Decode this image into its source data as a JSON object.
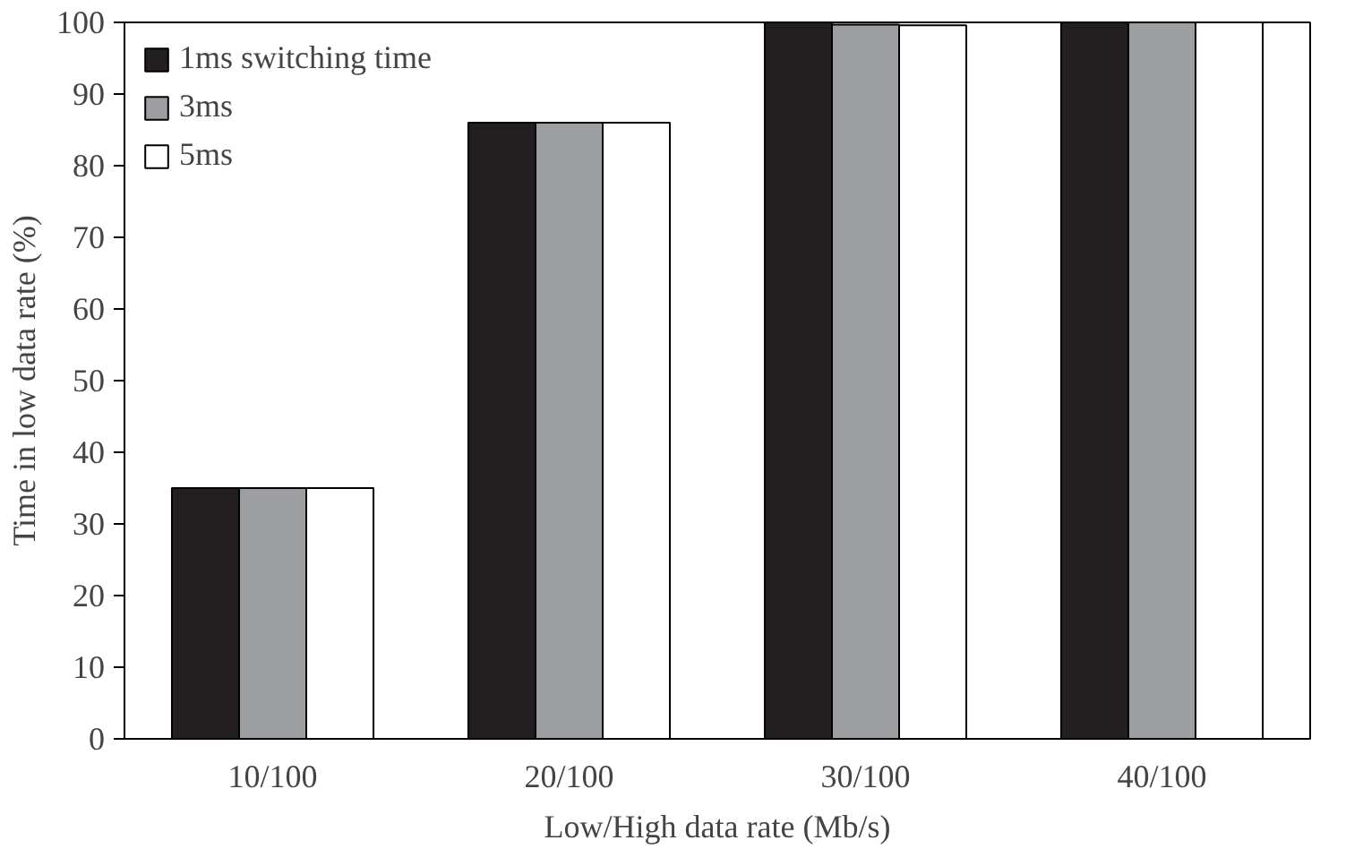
{
  "chart_data": {
    "type": "bar",
    "xlabel": "Low/High data rate (Mb/s)",
    "ylabel": "Time in low data rate (%)",
    "categories": [
      "10/100",
      "20/100",
      "30/100",
      "40/100"
    ],
    "series": [
      {
        "name": "1ms switching time",
        "color": "#231f20",
        "values": [
          35,
          86,
          100,
          100
        ]
      },
      {
        "name": "3ms",
        "color": "#9d9ea2",
        "values": [
          35,
          86,
          99.7,
          100
        ]
      },
      {
        "name": "5ms",
        "color": "#ffffff",
        "values": [
          35,
          86,
          99.6,
          100
        ]
      }
    ],
    "ylim": [
      0,
      100
    ],
    "yticks": [
      0,
      10,
      20,
      30,
      40,
      50,
      60,
      70,
      80,
      90,
      100
    ],
    "grid": false,
    "legend": "top left"
  }
}
